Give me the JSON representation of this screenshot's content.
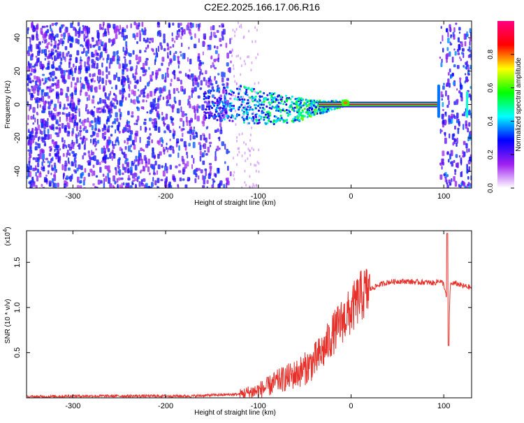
{
  "title": "C2E2.2025.166.17.06.R16",
  "chart_data": [
    {
      "type": "heatmap",
      "xlabel": "Height of straight line (km)",
      "ylabel": "Frequency (Hz)",
      "xlim": [
        -350,
        130
      ],
      "ylim": [
        -50,
        50
      ],
      "x_ticks": [
        -300,
        -200,
        -100,
        0,
        100
      ],
      "y_ticks": [
        -40,
        -20,
        0,
        20,
        40
      ],
      "colorbar": {
        "label": "Normalized spectral amplitude",
        "range": [
          0.0,
          1.0
        ],
        "ticks": [
          0.0,
          0.2,
          0.4,
          0.6,
          0.8
        ],
        "tick_labels": [
          "0.0",
          "0.2",
          "0.4",
          "0.6",
          "0.8"
        ],
        "colors": [
          "#ffffff",
          "#a020f0",
          "#0000ff",
          "#00ffff",
          "#00ff00",
          "#ffff00",
          "#ff0000",
          "#ff0080"
        ]
      },
      "features": {
        "noise_region_x": [
          -350,
          -130
        ],
        "noise_gap_x": [
          -130,
          95
        ],
        "noise_region_right_x": [
          95,
          130
        ],
        "narrow_line": {
          "x": [
            -35,
            93
          ],
          "freq": 0,
          "amplitude": 0.95
        },
        "spread_band": [
          {
            "x": -160,
            "freq_low": -8,
            "freq_high": 10,
            "amplitude": 0.3
          },
          {
            "x": -120,
            "freq_low": -10,
            "freq_high": 12,
            "amplitude": 0.45
          },
          {
            "x": -90,
            "freq_low": -12,
            "freq_high": 8,
            "amplitude": 0.5
          },
          {
            "x": -60,
            "freq_low": -10,
            "freq_high": 5,
            "amplitude": 0.55
          },
          {
            "x": -40,
            "freq_low": -6,
            "freq_high": 3,
            "amplitude": 0.6
          },
          {
            "x": -10,
            "freq_low": -1,
            "freq_high": 3,
            "amplitude": 0.55
          }
        ]
      }
    },
    {
      "type": "line",
      "xlabel": "Height of straight line (km)",
      "ylabel": "SNR (10 * v/v)",
      "y_multiplier": "(x10",
      "y_multiplier_exp": "4",
      "y_multiplier_close": ")",
      "xlim": [
        -350,
        130
      ],
      "ylim": [
        0,
        1.85
      ],
      "x_ticks": [
        -300,
        -200,
        -100,
        0,
        100
      ],
      "y_ticks": [
        0.5,
        1.0,
        1.5
      ],
      "y_tick_labels": [
        "0.5",
        "1.0",
        "1.5"
      ],
      "series": [
        {
          "color": "#e8302a",
          "x": [
            -350,
            -300,
            -250,
            -200,
            -170,
            -150,
            -120,
            -100,
            -90,
            -80,
            -70,
            -60,
            -50,
            -40,
            -30,
            -20,
            -10,
            0,
            5,
            10,
            15,
            20,
            30,
            40,
            50,
            60,
            70,
            80,
            90,
            95,
            100,
            103,
            105,
            107,
            110,
            115,
            120,
            130
          ],
          "y": [
            0.01,
            0.02,
            0.02,
            0.02,
            0.02,
            0.03,
            0.04,
            0.08,
            0.12,
            0.18,
            0.22,
            0.26,
            0.32,
            0.4,
            0.52,
            0.7,
            0.85,
            0.95,
            1.05,
            1.12,
            1.16,
            1.2,
            1.25,
            1.28,
            1.29,
            1.29,
            1.28,
            1.28,
            1.27,
            1.3,
            1.26,
            1.1,
            0.58,
            1.25,
            1.27,
            1.26,
            1.24,
            1.22
          ]
        }
      ]
    }
  ]
}
